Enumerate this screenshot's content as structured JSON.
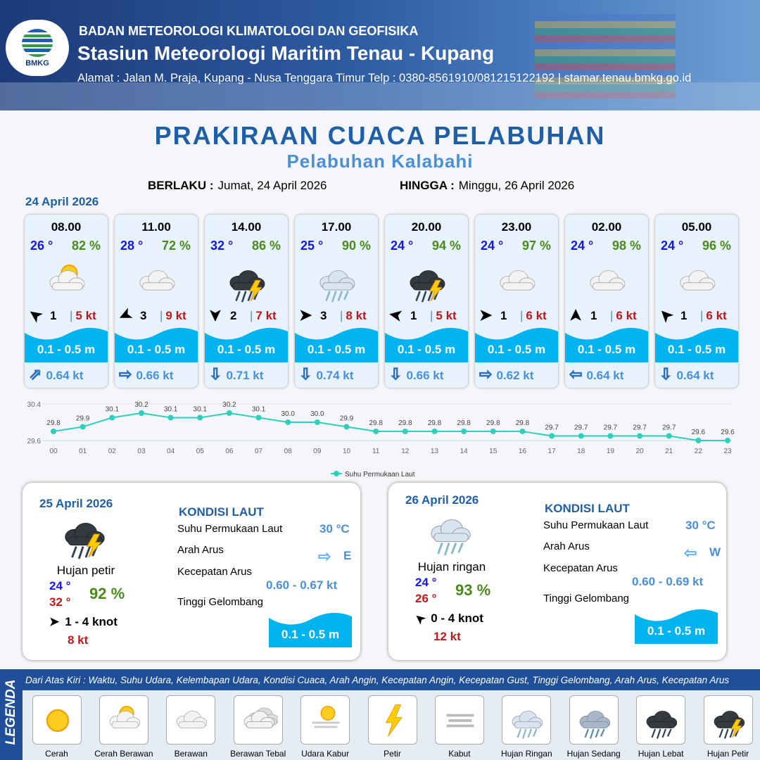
{
  "header": {
    "org": "BADAN METEOROLOGI KLIMATOLOGI DAN GEOFISIKA",
    "station": "Stasiun Meteorologi Maritim Tenau - Kupang",
    "address": "Alamat : Jalan M. Praja, Kupang - Nusa Tenggara Timur Telp : 0380-8561910/081215122192  | stamar.tenau.bmkg.go.id",
    "logo_text": "BMKG"
  },
  "title": "PRAKIRAAN CUACA PELABUHAN",
  "subtitle": "Pelabuhan Kalabahi",
  "validity": {
    "from_label": "BERLAKU :",
    "from": "Jumat, 24 April 2026",
    "to_label": "HINGGA :",
    "to": "Minggu, 26 April 2026"
  },
  "day1": {
    "date": "24 April 2026",
    "forecasts": [
      {
        "time": "08.00",
        "temp": "26 °",
        "rh": "82 %",
        "icon": "cerah-berawan",
        "wind_dir_deg": -145,
        "wind": "1",
        "gust": "5 kt",
        "wave": "0.1 - 0.5 m",
        "current_arrow": "⇗",
        "current": "0.64 kt"
      },
      {
        "time": "11.00",
        "temp": "28 °",
        "rh": "72 %",
        "icon": "berawan",
        "wind_dir_deg": 155,
        "wind": "3",
        "gust": "9 kt",
        "wave": "0.1 - 0.5 m",
        "current_arrow": "⇨",
        "current": "0.66 kt"
      },
      {
        "time": "14.00",
        "temp": "32 °",
        "rh": "86 %",
        "icon": "hujan-petir",
        "wind_dir_deg": 90,
        "wind": "2",
        "gust": "7 kt",
        "wave": "0.1 - 0.5 m",
        "current_arrow": "⇩",
        "current": "0.71 kt"
      },
      {
        "time": "17.00",
        "temp": "25 °",
        "rh": "90 %",
        "icon": "hujan-ringan",
        "wind_dir_deg": 0,
        "wind": "3",
        "gust": "8 kt",
        "wave": "0.1 - 0.5 m",
        "current_arrow": "⇩",
        "current": "0.74 kt"
      },
      {
        "time": "20.00",
        "temp": "24 °",
        "rh": "94 %",
        "icon": "hujan-petir",
        "wind_dir_deg": -170,
        "wind": "1",
        "gust": "5 kt",
        "wave": "0.1 - 0.5 m",
        "current_arrow": "⇩",
        "current": "0.66 kt"
      },
      {
        "time": "23.00",
        "temp": "24 °",
        "rh": "97 %",
        "icon": "berawan",
        "wind_dir_deg": 0,
        "wind": "1",
        "gust": "6 kt",
        "wave": "0.1 - 0.5 m",
        "current_arrow": "⇨",
        "current": "0.62 kt"
      },
      {
        "time": "02.00",
        "temp": "24 °",
        "rh": "98 %",
        "icon": "berawan",
        "wind_dir_deg": -90,
        "wind": "1",
        "gust": "6 kt",
        "wave": "0.1 - 0.5 m",
        "current_arrow": "⇦",
        "current": "0.64 kt"
      },
      {
        "time": "05.00",
        "temp": "24 °",
        "rh": "96 %",
        "icon": "berawan",
        "wind_dir_deg": -135,
        "wind": "1",
        "gust": "6 kt",
        "wave": "0.1 - 0.5 m",
        "current_arrow": "⇩",
        "current": "0.64 kt"
      }
    ]
  },
  "chart_data": {
    "type": "line",
    "categories": [
      "00",
      "01",
      "02",
      "03",
      "04",
      "05",
      "06",
      "07",
      "08",
      "09",
      "10",
      "11",
      "12",
      "13",
      "14",
      "15",
      "16",
      "17",
      "18",
      "19",
      "20",
      "21",
      "22",
      "23"
    ],
    "series": [
      {
        "name": "Suhu Permukaan Laut",
        "values": [
          29.8,
          29.9,
          30.1,
          30.2,
          30.1,
          30.1,
          30.2,
          30.1,
          30.0,
          30.0,
          29.9,
          29.8,
          29.8,
          29.8,
          29.8,
          29.8,
          29.8,
          29.7,
          29.7,
          29.7,
          29.7,
          29.7,
          29.6,
          29.6
        ],
        "color": "#2ecfbf"
      }
    ],
    "ylim": [
      29.6,
      30.4
    ],
    "yticks": [
      "30.4",
      "29.6"
    ],
    "legend": "bottom",
    "grid": true
  },
  "days": [
    {
      "date": "25 April 2026",
      "icon": "hujan-petir",
      "cond": "Hujan petir",
      "tmin": "24 °",
      "tmax": "32 °",
      "rh": "92 %",
      "wind_dir_deg": 0,
      "wind": "1 - 4 knot",
      "gust": "8 kt",
      "sea_title": "KONDISI LAUT",
      "sst_label": "Suhu Permukaan Laut",
      "sst": "30 °C",
      "dir_label": "Arah Arus",
      "dir_arrow": "⇨",
      "dir": "E",
      "spd_label": "Kecepatan Arus",
      "spd": "0.60 - 0.67 kt",
      "wave_label": "Tinggi Gelombang",
      "wave": "0.1 - 0.5 m"
    },
    {
      "date": "26 April 2026",
      "icon": "hujan-ringan",
      "cond": "Hujan ringan",
      "tmin": "24 °",
      "tmax": "26 °",
      "rh": "93 %",
      "wind_dir_deg": -140,
      "wind": "0 - 4 knot",
      "gust": "12 kt",
      "sea_title": "KONDISI LAUT",
      "sst_label": "Suhu Permukaan Laut",
      "sst": "30 °C",
      "dir_label": "Arah Arus",
      "dir_arrow": "⇦",
      "dir": "W",
      "spd_label": "Kecepatan Arus",
      "spd": "0.60 - 0.69 kt",
      "wave_label": "Tinggi Gelombang",
      "wave": "0.1 - 0.5 m"
    }
  ],
  "legend": {
    "title": "LEGENDA",
    "desc": "Dari Atas Kiri : Waktu, Suhu Udara, Kelembapan Udara, Kondisi Cuaca, Arah Angin, Kecepatan Angin, Kecepatan Gust, Tinggi Gelombang, Arah Arus, Kecepatan Arus",
    "items": [
      {
        "label": "Cerah",
        "icon": "cerah"
      },
      {
        "label": "Cerah Berawan",
        "icon": "cerah-berawan"
      },
      {
        "label": "Berawan",
        "icon": "berawan"
      },
      {
        "label": "Berawan Tebal",
        "icon": "berawan-tebal"
      },
      {
        "label": "Udara Kabur",
        "icon": "udara-kabur"
      },
      {
        "label": "Petir",
        "icon": "petir"
      },
      {
        "label": "Kabut",
        "icon": "kabut"
      },
      {
        "label": "Hujan Ringan",
        "icon": "hujan-ringan"
      },
      {
        "label": "Hujan Sedang",
        "icon": "hujan-sedang"
      },
      {
        "label": "Hujan Lebat",
        "icon": "hujan-lebat"
      },
      {
        "label": "Hujan Petir",
        "icon": "hujan-petir"
      }
    ]
  },
  "colors": {
    "primary": "#1f5fa8",
    "accent": "#4a90d9",
    "temp": "#1414f0",
    "rh": "#4a8a1a",
    "gust": "#c01818",
    "wave": "#00b4f0"
  }
}
